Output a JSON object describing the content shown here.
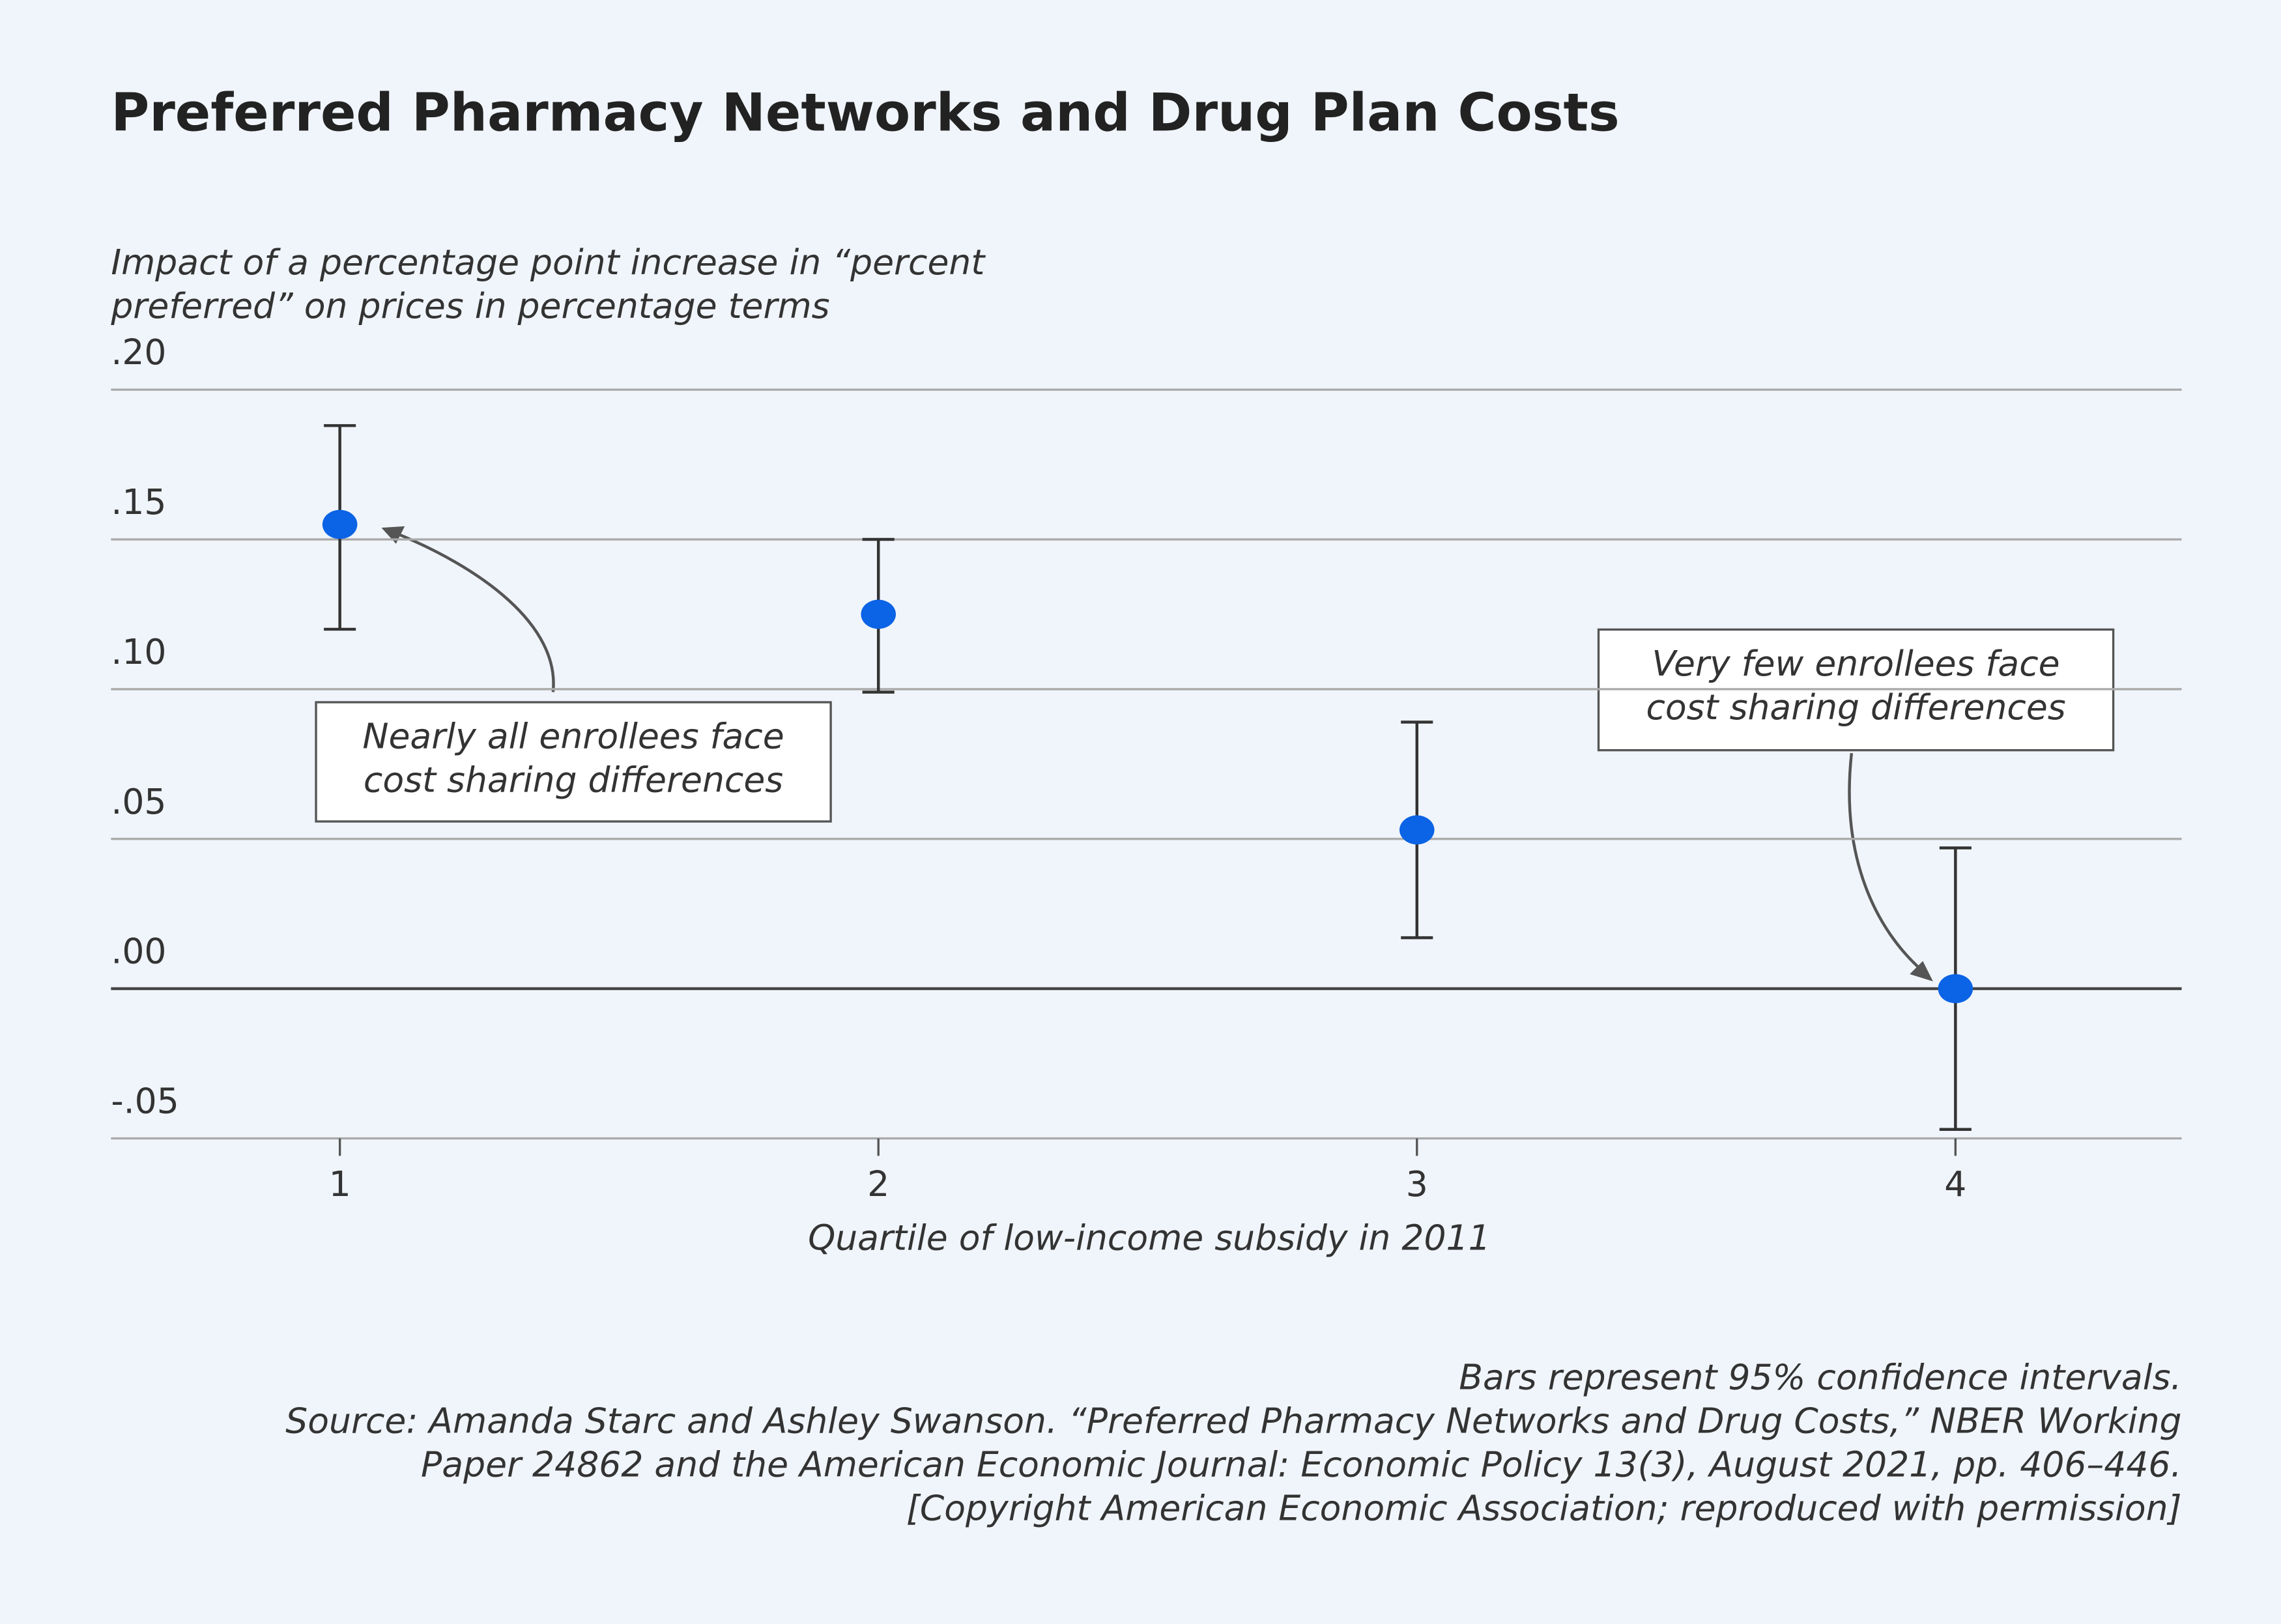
{
  "chart_data": {
    "type": "errorbar",
    "title": "Preferred Pharmacy Networks and Drug Plan Costs",
    "y_label": [
      "Impact of a percentage point increase in “percent",
      "preferred” on prices in percentage terms"
    ],
    "x_label": "Quartile of low-income subsidy in 2011",
    "x": [
      1,
      2,
      3,
      4
    ],
    "series": [
      {
        "color": "#0b63e5",
        "values": [
          0.155,
          0.125,
          0.053,
          0.0
        ],
        "lower": [
          0.12,
          0.099,
          0.017,
          -0.047
        ],
        "upper": [
          0.188,
          0.15,
          0.089,
          0.047
        ]
      }
    ],
    "xlim": [
      0.575,
      4.42
    ],
    "xticks": [
      1,
      2,
      3,
      4
    ],
    "ylim": [
      -0.05,
      0.2
    ],
    "yticks": [
      {
        "value": -0.05,
        "label": "-.05"
      },
      {
        "value": 0,
        "label": ".00"
      },
      {
        "value": 0.05,
        "label": ".05"
      },
      {
        "value": 0.1,
        "label": ".10"
      },
      {
        "value": 0.15,
        "label": ".15"
      },
      {
        "value": 0.2,
        "label": ".20"
      }
    ],
    "grid": true,
    "annotations": [
      {
        "text": [
          "Nearly all enrollees face",
          "cost sharing differences"
        ]
      },
      {
        "text": [
          "Very few enrollees face",
          "cost sharing differences"
        ]
      }
    ],
    "notes": [
      "Bars represent 95% confidence intervals.",
      "Source: Amanda Starc and Ashley Swanson. “Preferred Pharmacy Networks and Drug Costs,” NBER Working",
      "Paper 24862 and the American Economic Journal: Economic Policy 13(3), August 2021, pp. 406–446.",
      "[Copyright American Economic Association; reproduced with permission]"
    ]
  }
}
